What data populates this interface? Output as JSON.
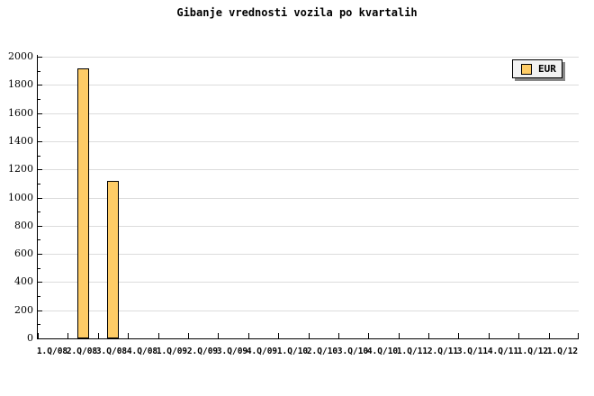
{
  "chart_data": {
    "type": "bar",
    "title": "Gibanje vrednosti vozila po kvartalih",
    "categories": [
      "1.Q/08",
      "2.Q/08",
      "3.Q/08",
      "4.Q/08",
      "1.Q/09",
      "2.Q/09",
      "3.Q/09",
      "4.Q/09",
      "1.Q/10",
      "2.Q/10",
      "3.Q/10",
      "4.Q/10",
      "1.Q/11",
      "2.Q/11",
      "3.Q/11",
      "4.Q/11",
      "1.Q/12",
      "1.Q/12"
    ],
    "series": [
      {
        "name": "EUR",
        "values": [
          null,
          1920,
          1120,
          null,
          null,
          null,
          null,
          null,
          null,
          null,
          null,
          null,
          null,
          null,
          null,
          null,
          null,
          null
        ]
      }
    ],
    "xlabel": "",
    "ylabel": "",
    "ylim": [
      0,
      2000
    ],
    "ytick_step": 200,
    "yminor_step": 100,
    "grid": true,
    "legend_position": "top-right",
    "colors": {
      "bar_fill": "#FECC66",
      "bar_border": "#000000",
      "grid": "#DCDCDC",
      "axis": "#000000",
      "background": "#FFFFFF",
      "legend_bg": "#F2F2F2",
      "legend_shadow": "#888888"
    }
  }
}
